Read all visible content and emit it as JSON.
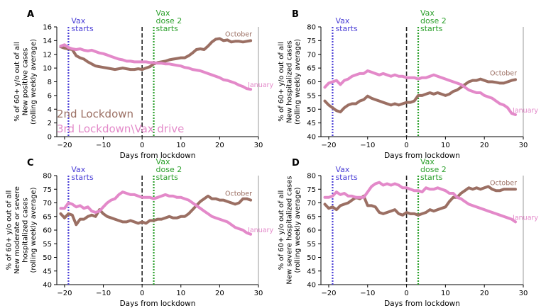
{
  "colors": {
    "october": "#9b6f63",
    "january": "#e389c9",
    "vax": "#4b3fd6",
    "dose2": "#2ca02c",
    "lockdown": "#222222",
    "spine": "#999999"
  },
  "legend": {
    "october_label": "2nd Lockdown",
    "january_label": "3rd Lockdown\\Vax drive"
  },
  "chart_data": [
    {
      "type": "line",
      "panel": "A",
      "xlabel": "Days from lockdown",
      "ylabel": [
        "% of 60+ y/o out of all",
        "New positive cases",
        "(rolling weekly average)"
      ],
      "xlim": [
        -22,
        30
      ],
      "ylim": [
        0,
        16
      ],
      "xticks": [
        -20,
        -10,
        0,
        10,
        20,
        30
      ],
      "yticks": [
        0,
        2,
        4,
        6,
        8,
        10,
        12,
        14,
        16
      ],
      "vlines": {
        "vax": -19,
        "lockdown": 0,
        "dose2": 3
      },
      "annotations": {
        "vax": "Vax\nstarts",
        "dose2": "Vax\ndose 2\nstarts"
      },
      "series": [
        {
          "name": "October",
          "x": [
            -21,
            -20,
            -19,
            -18,
            -17,
            -16,
            -15,
            -14,
            -13,
            -12,
            -11,
            -10,
            -9,
            -8,
            -7,
            -6,
            -5,
            -4,
            -3,
            -2,
            -1,
            0,
            1,
            2,
            3,
            4,
            5,
            6,
            7,
            8,
            9,
            10,
            11,
            12,
            13,
            14,
            15,
            16,
            17,
            18,
            19,
            20,
            21,
            22,
            23,
            24,
            25,
            26,
            27,
            28
          ],
          "y": [
            13.1,
            12.9,
            12.8,
            12.7,
            11.8,
            11.5,
            11.3,
            10.9,
            10.6,
            10.3,
            10.2,
            10.1,
            10.0,
            9.9,
            9.8,
            9.9,
            10.0,
            9.9,
            9.8,
            9.8,
            9.9,
            9.8,
            10.0,
            10.2,
            10.6,
            10.8,
            10.9,
            11.0,
            11.2,
            11.3,
            11.4,
            11.5,
            11.5,
            11.8,
            12.2,
            12.7,
            12.8,
            12.7,
            13.2,
            13.8,
            14.2,
            14.3,
            14.0,
            14.1,
            13.8,
            13.9,
            13.9,
            13.8,
            13.9,
            14.0
          ]
        },
        {
          "name": "January",
          "x": [
            -21,
            -20,
            -19,
            -18,
            -17,
            -16,
            -15,
            -14,
            -13,
            -12,
            -11,
            -10,
            -9,
            -8,
            -7,
            -6,
            -5,
            -4,
            -3,
            -2,
            -1,
            0,
            1,
            2,
            3,
            4,
            5,
            6,
            7,
            8,
            9,
            10,
            11,
            12,
            13,
            14,
            15,
            16,
            17,
            18,
            19,
            20,
            21,
            22,
            23,
            24,
            25,
            26,
            27,
            28
          ],
          "y": [
            13.2,
            13.4,
            13.0,
            12.8,
            12.7,
            12.8,
            12.6,
            12.5,
            12.6,
            12.4,
            12.2,
            12.1,
            11.9,
            11.7,
            11.5,
            11.3,
            11.2,
            11.0,
            11.0,
            10.9,
            10.9,
            10.9,
            10.9,
            10.8,
            10.8,
            10.7,
            10.7,
            10.6,
            10.6,
            10.5,
            10.4,
            10.3,
            10.1,
            10.0,
            9.8,
            9.7,
            9.6,
            9.4,
            9.2,
            9.0,
            8.8,
            8.6,
            8.3,
            8.2,
            8.0,
            7.8,
            7.5,
            7.3,
            7.0,
            6.9
          ]
        }
      ],
      "end_labels": {
        "october": "October",
        "january": "January"
      }
    },
    {
      "type": "line",
      "panel": "B",
      "xlabel": "Days from lockdown",
      "ylabel": [
        "% of 60+ y/o out of all",
        "New hospitalized cases",
        "(rolling weekly average)"
      ],
      "xlim": [
        -22,
        30
      ],
      "ylim": [
        40,
        80
      ],
      "xticks": [
        -20,
        -10,
        0,
        10,
        20,
        30
      ],
      "yticks": [
        40,
        45,
        50,
        55,
        60,
        65,
        70,
        75,
        80
      ],
      "vlines": {
        "vax": -19,
        "lockdown": 0,
        "dose2": 3
      },
      "annotations": {
        "vax": "Vax\nstarts",
        "dose2": "Vax\ndose 2\nstarts"
      },
      "series": [
        {
          "name": "October",
          "x": [
            -21,
            -20,
            -19,
            -18,
            -17,
            -16,
            -15,
            -14,
            -13,
            -12,
            -11,
            -10,
            -9,
            -8,
            -7,
            -6,
            -5,
            -4,
            -3,
            -2,
            -1,
            0,
            1,
            2,
            3,
            4,
            5,
            6,
            7,
            8,
            9,
            10,
            11,
            12,
            13,
            14,
            15,
            16,
            17,
            18,
            19,
            20,
            21,
            22,
            23,
            24,
            25,
            26,
            27,
            28
          ],
          "y": [
            53.0,
            51.5,
            50.5,
            49.5,
            49.0,
            50.5,
            51.5,
            52.0,
            52.0,
            53.0,
            53.5,
            54.8,
            54.0,
            53.5,
            53.0,
            52.5,
            52.0,
            51.5,
            52.0,
            51.5,
            52.0,
            52.5,
            52.5,
            53.0,
            55.0,
            55.0,
            55.5,
            56.0,
            55.5,
            56.0,
            55.5,
            55.0,
            55.5,
            56.5,
            57.0,
            58.0,
            59.0,
            60.0,
            60.5,
            60.5,
            61.0,
            60.5,
            60.0,
            60.0,
            59.8,
            59.5,
            59.5,
            60.0,
            60.5,
            60.8
          ]
        },
        {
          "name": "January",
          "x": [
            -21,
            -20,
            -19,
            -18,
            -17,
            -16,
            -15,
            -14,
            -13,
            -12,
            -11,
            -10,
            -9,
            -8,
            -7,
            -6,
            -5,
            -4,
            -3,
            -2,
            -1,
            0,
            1,
            2,
            3,
            4,
            5,
            6,
            7,
            8,
            9,
            10,
            11,
            12,
            13,
            14,
            15,
            16,
            17,
            18,
            19,
            20,
            21,
            22,
            23,
            24,
            25,
            26,
            27,
            28
          ],
          "y": [
            58.0,
            59.5,
            60.0,
            60.5,
            59.0,
            60.5,
            61.0,
            62.0,
            62.5,
            63.0,
            63.0,
            64.0,
            63.5,
            63.0,
            62.5,
            63.0,
            62.5,
            62.0,
            62.5,
            62.0,
            62.0,
            61.5,
            61.5,
            61.5,
            61.0,
            61.5,
            61.5,
            62.0,
            62.5,
            62.0,
            61.5,
            61.0,
            60.5,
            60.0,
            59.5,
            59.0,
            58.0,
            57.0,
            56.5,
            56.0,
            56.0,
            55.0,
            54.5,
            54.0,
            53.0,
            52.0,
            51.5,
            50.5,
            48.5,
            48.0
          ]
        }
      ],
      "end_labels": {
        "october": "October",
        "january": "January"
      }
    },
    {
      "type": "line",
      "panel": "C",
      "xlabel": "Days from lockdown",
      "ylabel": [
        "% of 60+ y/o out of all",
        "New moderate or severe",
        "hospitalized cases",
        "(rolling weekly average)"
      ],
      "xlim": [
        -22,
        30
      ],
      "ylim": [
        40,
        80
      ],
      "xticks": [
        -20,
        -10,
        0,
        10,
        20,
        30
      ],
      "yticks": [
        40,
        45,
        50,
        55,
        60,
        65,
        70,
        75,
        80
      ],
      "vlines": {
        "vax": -19,
        "lockdown": 0,
        "dose2": 3
      },
      "annotations": {
        "vax": "Vax\nstarts",
        "dose2": "Vax\ndose 2\nstarts"
      },
      "series": [
        {
          "name": "October",
          "x": [
            -21,
            -20,
            -19,
            -18,
            -17,
            -16,
            -15,
            -14,
            -13,
            -12,
            -11,
            -10,
            -9,
            -8,
            -7,
            -6,
            -5,
            -4,
            -3,
            -2,
            -1,
            0,
            1,
            2,
            3,
            4,
            5,
            6,
            7,
            8,
            9,
            10,
            11,
            12,
            13,
            14,
            15,
            16,
            17,
            18,
            19,
            20,
            21,
            22,
            23,
            24,
            25,
            26,
            27,
            28
          ],
          "y": [
            66.0,
            64.5,
            66.0,
            65.5,
            62.0,
            64.0,
            64.0,
            65.0,
            65.5,
            65.0,
            67.5,
            66.0,
            65.0,
            64.5,
            64.0,
            63.5,
            63.0,
            63.0,
            63.5,
            63.0,
            62.5,
            63.0,
            62.5,
            63.5,
            63.5,
            64.0,
            64.0,
            64.5,
            65.0,
            64.5,
            64.5,
            65.0,
            65.0,
            66.0,
            67.5,
            69.0,
            70.5,
            71.5,
            72.5,
            71.5,
            71.5,
            71.0,
            71.0,
            70.5,
            70.0,
            69.5,
            70.0,
            71.5,
            71.5,
            71.0
          ]
        },
        {
          "name": "January",
          "x": [
            -21,
            -20,
            -19,
            -18,
            -17,
            -16,
            -15,
            -14,
            -13,
            -12,
            -11,
            -10,
            -9,
            -8,
            -7,
            -6,
            -5,
            -4,
            -3,
            -2,
            -1,
            0,
            1,
            2,
            3,
            4,
            5,
            6,
            7,
            8,
            9,
            10,
            11,
            12,
            13,
            14,
            15,
            16,
            17,
            18,
            19,
            20,
            21,
            22,
            23,
            24,
            25,
            26,
            27,
            28
          ],
          "y": [
            68.0,
            68.0,
            70.0,
            69.5,
            68.5,
            69.0,
            68.0,
            68.5,
            67.0,
            66.5,
            67.0,
            68.5,
            70.0,
            71.0,
            71.5,
            73.0,
            74.0,
            73.5,
            73.0,
            73.0,
            72.5,
            72.0,
            72.0,
            72.0,
            71.5,
            72.0,
            72.5,
            73.0,
            72.5,
            72.5,
            72.0,
            72.0,
            71.5,
            71.0,
            70.0,
            69.0,
            68.0,
            67.0,
            66.0,
            65.0,
            64.5,
            64.0,
            63.5,
            63.0,
            62.0,
            61.0,
            60.5,
            60.0,
            59.0,
            58.5
          ]
        }
      ],
      "end_labels": {
        "october": "October",
        "january": "January"
      }
    },
    {
      "type": "line",
      "panel": "D",
      "xlabel": "Days from lockdown",
      "ylabel": [
        "% of 60+ y/o out of all",
        "New severe hospitalized cases",
        "(rolling weekly average)"
      ],
      "xlim": [
        -22,
        30
      ],
      "ylim": [
        40,
        80
      ],
      "xticks": [
        -20,
        -10,
        0,
        10,
        20,
        30
      ],
      "yticks": [
        40,
        45,
        50,
        55,
        60,
        65,
        70,
        75,
        80
      ],
      "vlines": {
        "vax": -19,
        "lockdown": 0,
        "dose2": 3
      },
      "annotations": {
        "vax": "Vax\nstarts",
        "dose2": "Vax\ndose 2\nstarts"
      },
      "series": [
        {
          "name": "October",
          "x": [
            -21,
            -20,
            -19,
            -18,
            -17,
            -16,
            -15,
            -14,
            -13,
            -12,
            -11,
            -10,
            -9,
            -8,
            -7,
            -6,
            -5,
            -4,
            -3,
            -2,
            -1,
            0,
            1,
            2,
            3,
            4,
            5,
            6,
            7,
            8,
            9,
            10,
            11,
            12,
            13,
            14,
            15,
            16,
            17,
            18,
            19,
            20,
            21,
            22,
            23,
            24,
            25,
            26,
            27,
            28
          ],
          "y": [
            69.5,
            68.0,
            68.5,
            67.5,
            69.0,
            69.5,
            70.0,
            71.0,
            72.0,
            71.5,
            72.5,
            69.0,
            69.0,
            68.5,
            66.5,
            66.0,
            66.5,
            67.0,
            67.5,
            66.0,
            65.5,
            66.5,
            66.0,
            66.0,
            65.5,
            66.0,
            66.5,
            67.5,
            67.0,
            67.5,
            68.0,
            68.5,
            70.5,
            72.0,
            72.0,
            73.5,
            74.5,
            75.5,
            75.0,
            75.5,
            75.0,
            75.5,
            76.0,
            75.0,
            74.5,
            74.5,
            75.0,
            75.0,
            75.0,
            75.0
          ]
        },
        {
          "name": "January",
          "x": [
            -21,
            -20,
            -19,
            -18,
            -17,
            -16,
            -15,
            -14,
            -13,
            -12,
            -11,
            -10,
            -9,
            -8,
            -7,
            -6,
            -5,
            -4,
            -3,
            -2,
            -1,
            0,
            1,
            2,
            3,
            4,
            5,
            6,
            7,
            8,
            9,
            10,
            11,
            12,
            13,
            14,
            15,
            16,
            17,
            18,
            19,
            20,
            21,
            22,
            23,
            24,
            25,
            26,
            27,
            28
          ],
          "y": [
            72.0,
            72.0,
            72.5,
            74.0,
            73.0,
            73.5,
            72.5,
            72.5,
            72.0,
            72.0,
            72.0,
            74.0,
            76.0,
            77.0,
            77.5,
            76.5,
            77.0,
            76.5,
            77.0,
            76.5,
            75.5,
            75.5,
            75.0,
            74.5,
            74.5,
            74.0,
            75.5,
            75.0,
            75.0,
            75.5,
            75.0,
            74.5,
            73.5,
            73.5,
            72.0,
            71.5,
            70.5,
            69.5,
            69.0,
            68.5,
            68.0,
            67.5,
            67.0,
            66.5,
            66.0,
            65.5,
            65.0,
            64.5,
            64.0,
            63.0
          ]
        }
      ],
      "end_labels": {
        "october": "October",
        "january": "January"
      }
    }
  ]
}
